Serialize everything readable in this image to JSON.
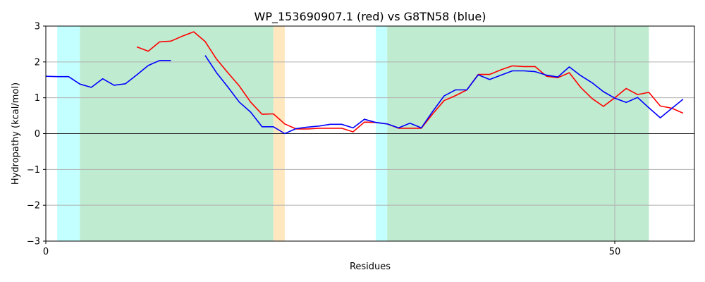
{
  "chart_data": {
    "type": "line",
    "title": "WP_153690907.1 (red) vs G8TN58 (blue)",
    "xlabel": "Residues",
    "ylabel": "Hydropathy (kcal/mol)",
    "xlim": [
      0,
      57
    ],
    "ylim": [
      -3,
      3
    ],
    "x_ticks": [
      0,
      50
    ],
    "y_ticks": [
      -3,
      -2,
      -1,
      0,
      1,
      2,
      3
    ],
    "grid": true,
    "zero_line": true,
    "regions": [
      {
        "start": 1,
        "end": 3,
        "color": "#c4ffff"
      },
      {
        "start": 3,
        "end": 20,
        "color": "#bfebd0"
      },
      {
        "start": 20,
        "end": 21,
        "color": "#ffe8c0"
      },
      {
        "start": 29,
        "end": 30,
        "color": "#c4ffff"
      },
      {
        "start": 30,
        "end": 53,
        "color": "#bfebd0"
      }
    ],
    "series": [
      {
        "color": "#ff0000",
        "x": [
          8,
          9,
          10,
          11,
          12,
          13,
          14,
          15,
          16,
          17,
          18,
          19,
          20,
          21,
          22,
          23,
          24,
          25,
          26,
          27,
          28,
          29,
          30,
          31,
          32,
          33,
          34,
          35,
          36,
          37,
          38,
          39,
          40,
          41,
          42,
          43,
          44,
          45,
          46,
          47,
          48,
          49,
          50,
          51,
          52,
          53,
          54,
          55,
          56
        ],
        "values": [
          2.42,
          2.3,
          2.56,
          2.58,
          2.72,
          2.84,
          2.57,
          2.08,
          1.7,
          1.33,
          0.88,
          0.54,
          0.55,
          0.27,
          0.13,
          0.13,
          0.15,
          0.15,
          0.15,
          0.05,
          0.32,
          0.31,
          0.27,
          0.15,
          0.15,
          0.15,
          0.55,
          0.92,
          1.06,
          1.22,
          1.65,
          1.65,
          1.78,
          1.89,
          1.87,
          1.87,
          1.6,
          1.56,
          1.7,
          1.29,
          0.98,
          0.76,
          1.0,
          1.26,
          1.09,
          1.15,
          0.77,
          0.71,
          0.57
        ]
      },
      {
        "color": "#0000ff",
        "x": [
          0,
          1,
          2,
          3,
          4,
          5,
          6,
          7,
          8,
          9,
          10,
          11,
          14,
          15,
          16,
          17,
          18,
          19,
          20,
          21,
          22,
          23,
          24,
          25,
          26,
          27,
          28,
          29,
          30,
          31,
          32,
          33,
          34,
          35,
          36,
          37,
          38,
          39,
          40,
          41,
          42,
          43,
          44,
          45,
          46,
          47,
          48,
          49,
          50,
          51,
          52,
          53,
          54,
          55,
          56
        ],
        "values": [
          1.6,
          1.59,
          1.59,
          1.38,
          1.29,
          1.53,
          1.35,
          1.39,
          1.64,
          1.9,
          2.04,
          2.04,
          2.18,
          1.7,
          1.3,
          0.88,
          0.6,
          0.19,
          0.19,
          0.0,
          0.14,
          0.18,
          0.21,
          0.26,
          0.26,
          0.16,
          0.4,
          0.31,
          0.27,
          0.16,
          0.29,
          0.16,
          0.62,
          1.05,
          1.22,
          1.22,
          1.64,
          1.51,
          1.63,
          1.75,
          1.75,
          1.73,
          1.63,
          1.58,
          1.86,
          1.62,
          1.42,
          1.17,
          0.99,
          0.87,
          1.01,
          0.72,
          0.44,
          0.7,
          0.96
        ]
      }
    ]
  }
}
